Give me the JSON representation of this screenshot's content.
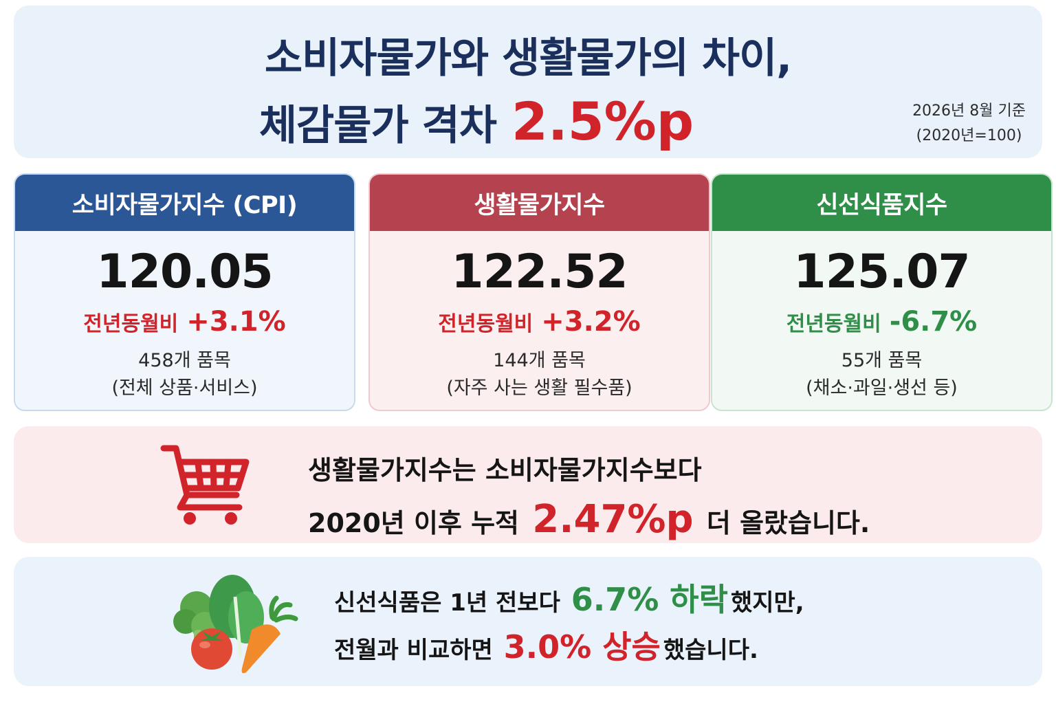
{
  "header": {
    "title_line1": "소비자물가와 생활물가의 차이,",
    "title_line2": "체감물가 격차",
    "title_highlight": "2.5%p",
    "as_of_line1": "2026년 8월 기준",
    "as_of_line2": "(2020년=100)"
  },
  "cards": [
    {
      "title": "소비자물가지수 (CPI)",
      "value": "120.05",
      "change_label": "전년동월비",
      "change_value": "+3.1%",
      "items_count": "458개 품목",
      "items_desc": "(전체 상품·서비스)",
      "color": "#2b5796"
    },
    {
      "title": "생활물가지수",
      "value": "122.52",
      "change_label": "전년동월비",
      "change_value": "+3.2%",
      "items_count": "144개 품목",
      "items_desc": "(자주 사는 생활 필수품)",
      "color": "#b5434f"
    },
    {
      "title": "신선식품지수",
      "value": "125.07",
      "change_label": "전년동월비",
      "change_value": "-6.7%",
      "items_count": "55개 품목",
      "items_desc": "(채소·과일·생선 등)",
      "color": "#2f8f48"
    }
  ],
  "message1": {
    "line1": "생활물가지수는 소비자물가지수보다",
    "line2_pre": "2020년 이후 누적",
    "line2_highlight": "2.47%p",
    "line2_post": "더 올랐습니다.",
    "icon": "shopping-cart-icon"
  },
  "message2": {
    "line1_pre": "신선식품은 1년 전보다",
    "line1_highlight": "6.7% 하락",
    "line1_post": "했지만,",
    "line2_pre": "전월과 비교하면",
    "line2_highlight": "3.0% 상승",
    "line2_post": "했습니다.",
    "icon": "vegetables-icon"
  },
  "colors": {
    "accent_red": "#d1232a",
    "accent_green": "#2f8f48",
    "title_navy": "#1b2f5c"
  }
}
